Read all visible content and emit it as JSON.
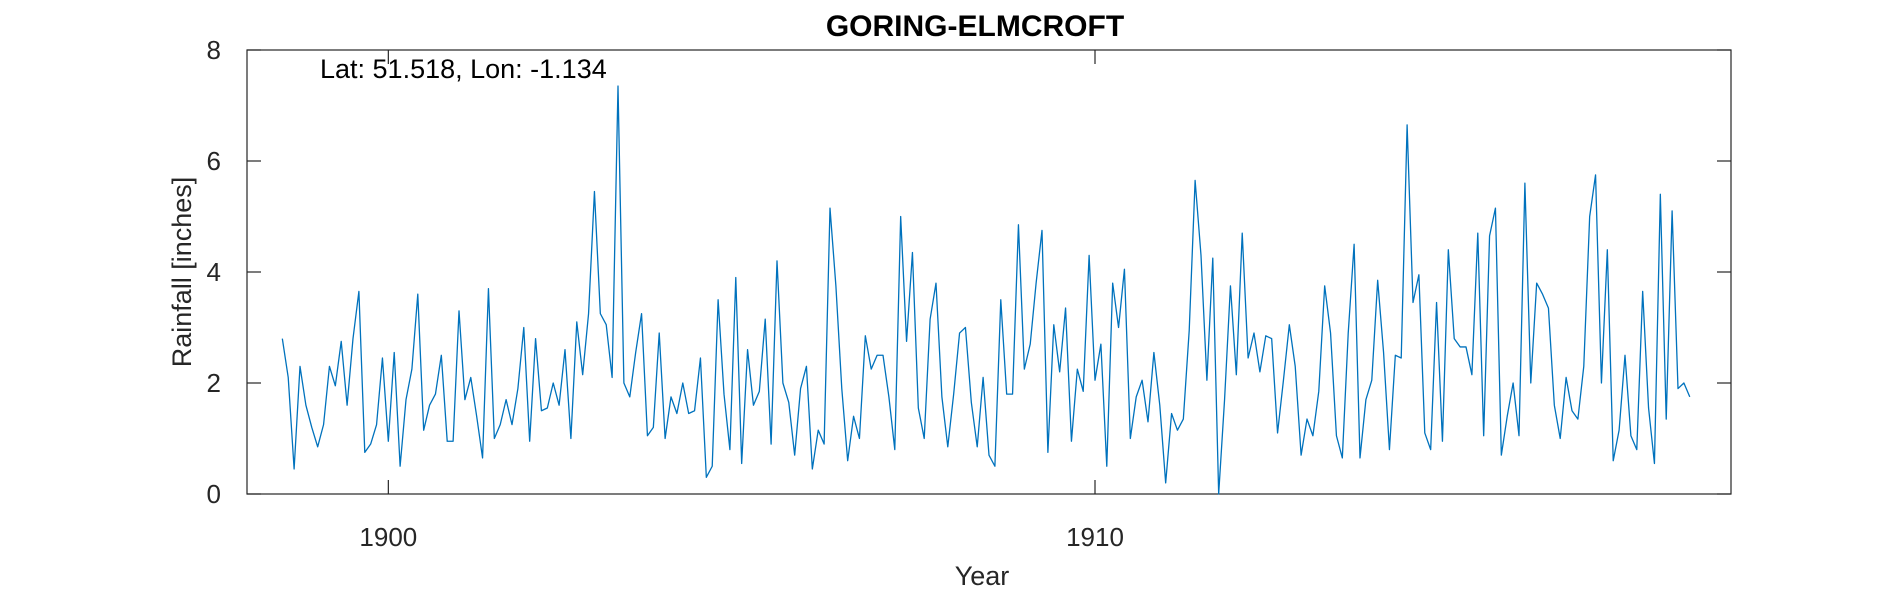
{
  "chart_data": {
    "type": "line",
    "title": "GORING-ELMCROFT",
    "xlabel": "Year",
    "ylabel": "Rainfall [inches]",
    "annotation": "Lat: 51.518, Lon: -1.134",
    "xlim": [
      1898.0,
      1919.0
    ],
    "ylim": [
      0,
      8
    ],
    "x_ticks": [
      1900,
      1910
    ],
    "y_ticks": [
      0,
      2,
      4,
      6,
      8
    ],
    "grid": false,
    "line_color": "#0072BD",
    "series": [
      {
        "x_start": 1898.5,
        "x_step": 0.0833333,
        "values": [
          2.8,
          2.1,
          0.45,
          2.3,
          1.6,
          1.2,
          0.85,
          1.25,
          2.3,
          1.95,
          2.75,
          1.6,
          2.8,
          3.65,
          0.75,
          0.9,
          1.25,
          2.45,
          0.95,
          2.55,
          0.5,
          1.7,
          2.25,
          3.6,
          1.15,
          1.6,
          1.8,
          2.5,
          0.95,
          0.95,
          3.3,
          1.7,
          2.1,
          1.4,
          0.65,
          3.7,
          1.0,
          1.25,
          1.7,
          1.25,
          1.9,
          3.0,
          0.95,
          2.8,
          1.5,
          1.55,
          2.0,
          1.6,
          2.6,
          1.0,
          3.1,
          2.15,
          3.25,
          5.45,
          3.25,
          3.05,
          2.1,
          7.35,
          2.0,
          1.75,
          2.55,
          3.25,
          1.05,
          1.2,
          2.9,
          1.0,
          1.75,
          1.45,
          2.0,
          1.45,
          1.5,
          2.45,
          0.3,
          0.5,
          3.5,
          1.8,
          0.8,
          3.9,
          0.55,
          2.6,
          1.6,
          1.85,
          3.15,
          0.9,
          4.2,
          2.0,
          1.65,
          0.7,
          1.9,
          2.3,
          0.45,
          1.15,
          0.9,
          5.15,
          3.75,
          1.9,
          0.6,
          1.4,
          1.0,
          2.85,
          2.25,
          2.5,
          2.5,
          1.75,
          0.8,
          5.0,
          2.75,
          4.35,
          1.55,
          1.0,
          3.15,
          3.8,
          1.75,
          0.85,
          1.8,
          2.9,
          3.0,
          1.65,
          0.85,
          2.1,
          0.7,
          0.5,
          3.5,
          1.8,
          1.8,
          4.85,
          2.25,
          2.7,
          3.8,
          4.75,
          0.75,
          3.05,
          2.2,
          3.35,
          0.95,
          2.25,
          1.85,
          4.3,
          2.05,
          2.7,
          0.5,
          3.8,
          3.0,
          4.05,
          1.0,
          1.75,
          2.05,
          1.3,
          2.55,
          1.6,
          0.2,
          1.45,
          1.15,
          1.35,
          2.95,
          5.65,
          4.3,
          2.05,
          4.25,
          0.0,
          1.7,
          3.75,
          2.15,
          4.7,
          2.45,
          2.9,
          2.2,
          2.85,
          2.8,
          1.1,
          2.05,
          3.05,
          2.3,
          0.7,
          1.35,
          1.05,
          1.85,
          3.75,
          2.9,
          1.05,
          0.65,
          2.9,
          4.5,
          0.65,
          1.7,
          2.05,
          3.85,
          2.55,
          0.8,
          2.5,
          2.45,
          6.65,
          3.45,
          3.95,
          1.1,
          0.8,
          3.45,
          0.95,
          4.4,
          2.8,
          2.65,
          2.65,
          2.15,
          4.7,
          1.05,
          4.65,
          5.15,
          0.7,
          1.4,
          2.0,
          1.05,
          5.6,
          2.0,
          3.8,
          3.6,
          3.35,
          1.6,
          1.0,
          2.1,
          1.5,
          1.35,
          2.3,
          5.0,
          5.75,
          2.0,
          4.4,
          0.6,
          1.15,
          2.5,
          1.05,
          0.8,
          3.65,
          1.55,
          0.55,
          5.4,
          1.35,
          5.1,
          1.9,
          2.0,
          1.75
        ]
      }
    ]
  }
}
